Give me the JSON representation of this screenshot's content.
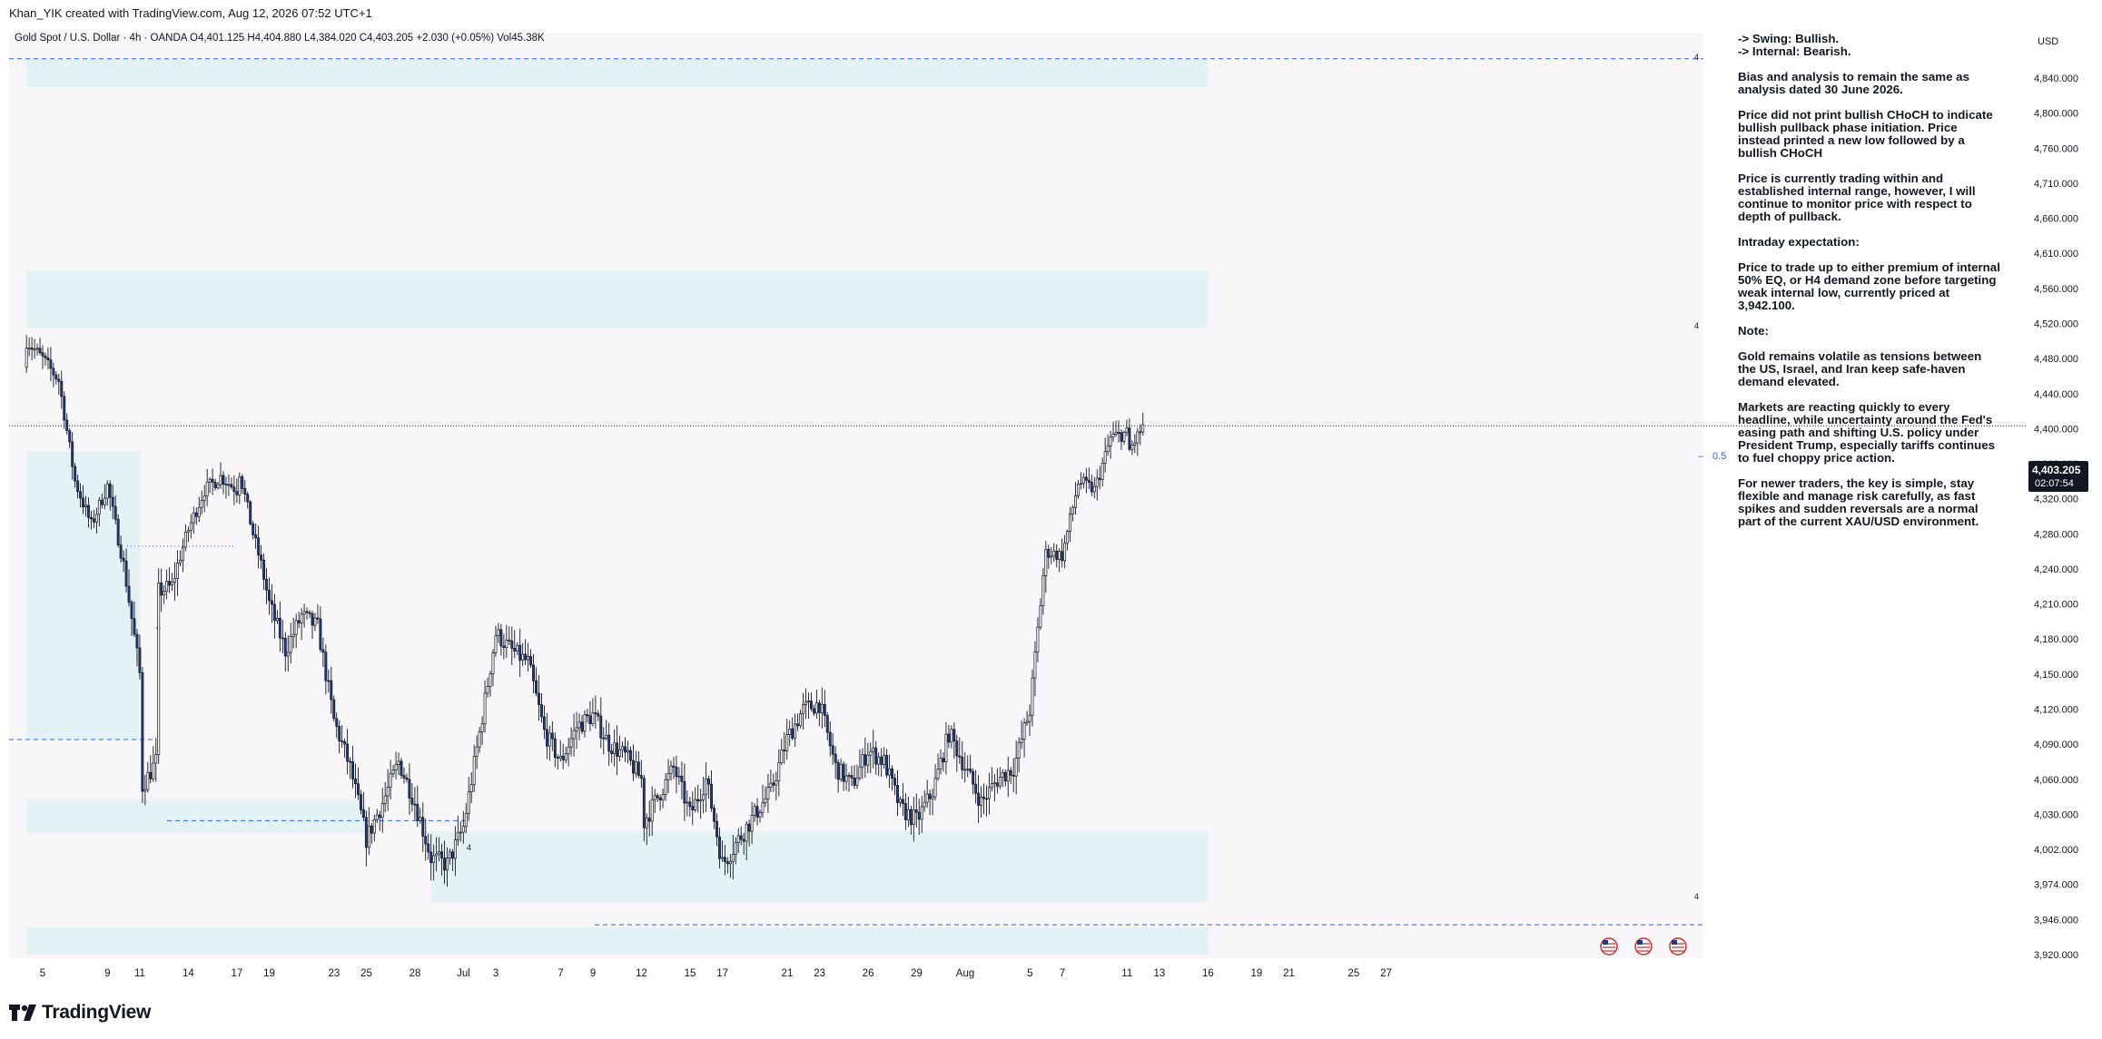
{
  "header": {
    "attribution": "Khan_YIK created with TradingView.com, Aug 12, 2026 07:52 UTC+1"
  },
  "legend_text": "Gold Spot / U.S. Dollar · 4h · OANDA  O4,401.125  H4,404.880  L4,384.020  C4,403.205  +2.030 (+0.05%)  Vol45.38K",
  "currency": "USD",
  "price_label": "4,403.205",
  "countdown": "02:07:54",
  "eq_label": "0.5",
  "zone_markers": [
    "4",
    "4",
    "4",
    "4",
    "4"
  ],
  "notes": [
    "-> Swing:  Bullish.",
    "-> Internal:  Bearish.",
    "Bias and analysis to remain the same as analysis dated 30 June 2026.",
    "Price did not print bullish CHoCH to indicate bullish pullback phase initiation. Price instead printed a new low followed by a bullish CHoCH",
    "Price is currently trading within and established internal range, however, I will continue to monitor price with respect to depth of pullback.",
    "Intraday expectation:",
    "Price to trade up to either premium of internal 50% EQ, or H4 demand zone before targeting weak internal low, currently priced at 3,942.100.",
    "Note:",
    "Gold remains volatile as tensions between the US, Israel, and Iran keep safe-haven demand elevated.",
    "Markets are reacting quickly to every headline, while uncertainty around the Fed's easing path and shifting U.S. policy under President Trump, especially tariffs continues to fuel choppy price action.",
    "For newer traders, the key is simple, stay flexible and manage risk carefully, as fast spikes and sudden reversals are a normal part of the current XAU/USD environment."
  ],
  "brand": "TradingView",
  "colors": {
    "bull_body": "#ffffff",
    "bear_body": "#1e3a8a",
    "wick": "#131722",
    "zone": "#e3f2f4",
    "dashed": "#2962ff",
    "plot_bg": "#f8f6f8",
    "price_tag": "#131722"
  },
  "chart_data": {
    "type": "candlestick",
    "symbol": "XAU/USD",
    "timeframe": "4h",
    "yticks": [
      4840,
      4800,
      4760,
      4710,
      4660,
      4610,
      4560,
      4520,
      4480,
      4440,
      4400,
      4360,
      4320,
      4280,
      4240,
      4210,
      4180,
      4150,
      4120,
      4090,
      4060,
      4030,
      4002,
      3974,
      3946,
      3920
    ],
    "ytick_labels": [
      "4,840.000",
      "4,800.000",
      "4,760.000",
      "4,710.000",
      "4,660.000",
      "4,610.000",
      "4,560.000",
      "4,520.000",
      "4,480.000",
      "4,440.000",
      "4,400.000",
      "4,360.000",
      "4,320.000",
      "4,280.000",
      "4,240.000",
      "4,210.000",
      "4,180.000",
      "4,150.000",
      "4,120.000",
      "4,090.000",
      "4,060.000",
      "4,030.000",
      "4,002.000",
      "3,974.000",
      "3,946.000",
      "3,920.000"
    ],
    "xticks": [
      {
        "label": "5",
        "date": "2026-06-05"
      },
      {
        "label": "9",
        "date": "2026-06-09"
      },
      {
        "label": "11",
        "date": "2026-06-11"
      },
      {
        "label": "14",
        "date": "2026-06-14"
      },
      {
        "label": "17",
        "date": "2026-06-17"
      },
      {
        "label": "19",
        "date": "2026-06-19"
      },
      {
        "label": "23",
        "date": "2026-06-23"
      },
      {
        "label": "25",
        "date": "2026-06-25"
      },
      {
        "label": "28",
        "date": "2026-06-28"
      },
      {
        "label": "Jul",
        "date": "2026-07-01"
      },
      {
        "label": "3",
        "date": "2026-07-03"
      },
      {
        "label": "7",
        "date": "2026-07-07"
      },
      {
        "label": "9",
        "date": "2026-07-09"
      },
      {
        "label": "12",
        "date": "2026-07-12"
      },
      {
        "label": "15",
        "date": "2026-07-15"
      },
      {
        "label": "17",
        "date": "2026-07-17"
      },
      {
        "label": "21",
        "date": "2026-07-21"
      },
      {
        "label": "23",
        "date": "2026-07-23"
      },
      {
        "label": "26",
        "date": "2026-07-26"
      },
      {
        "label": "29",
        "date": "2026-07-29"
      },
      {
        "label": "Aug",
        "date": "2026-08-01"
      },
      {
        "label": "5",
        "date": "2026-08-05"
      },
      {
        "label": "7",
        "date": "2026-08-07"
      },
      {
        "label": "11",
        "date": "2026-08-11"
      },
      {
        "label": "13",
        "date": "2026-08-13"
      },
      {
        "label": "16",
        "date": "2026-08-16"
      },
      {
        "label": "19",
        "date": "2026-08-19"
      },
      {
        "label": "21",
        "date": "2026-08-21"
      },
      {
        "label": "25",
        "date": "2026-08-25"
      },
      {
        "label": "27",
        "date": "2026-08-27"
      }
    ],
    "close_path": [
      [
        "2026-06-04",
        4470
      ],
      [
        "2026-06-04",
        4500
      ],
      [
        "2026-06-05",
        4480
      ],
      [
        "2026-06-06",
        4455
      ],
      [
        "2026-06-07",
        4340
      ],
      [
        "2026-06-08",
        4290
      ],
      [
        "2026-06-09",
        4335
      ],
      [
        "2026-06-10",
        4245
      ],
      [
        "2026-06-11",
        4150
      ],
      [
        "2026-06-11",
        4050
      ],
      [
        "2026-06-12",
        4075
      ],
      [
        "2026-06-12",
        4220
      ],
      [
        "2026-06-13",
        4225
      ],
      [
        "2026-06-14",
        4285
      ],
      [
        "2026-06-15",
        4330
      ],
      [
        "2026-06-16",
        4345
      ],
      [
        "2026-06-17",
        4330
      ],
      [
        "2026-06-17",
        4365
      ],
      [
        "2026-06-18",
        4280
      ],
      [
        "2026-06-19",
        4210
      ],
      [
        "2026-06-20",
        4170
      ],
      [
        "2026-06-21",
        4200
      ],
      [
        "2026-06-22",
        4190
      ],
      [
        "2026-06-23",
        4110
      ],
      [
        "2026-06-24",
        4070
      ],
      [
        "2026-06-25",
        4010
      ],
      [
        "2026-06-26",
        4040
      ],
      [
        "2026-06-27",
        4075
      ],
      [
        "2026-06-28",
        4040
      ],
      [
        "2026-06-29",
        3995
      ],
      [
        "2026-06-30",
        3990
      ],
      [
        "2026-07-01",
        4020
      ],
      [
        "2026-07-02",
        4100
      ],
      [
        "2026-07-03",
        4185
      ],
      [
        "2026-07-04",
        4170
      ],
      [
        "2026-07-05",
        4160
      ],
      [
        "2026-07-06",
        4100
      ],
      [
        "2026-07-07",
        4075
      ],
      [
        "2026-07-08",
        4105
      ],
      [
        "2026-07-09",
        4115
      ],
      [
        "2026-07-10",
        4090
      ],
      [
        "2026-07-11",
        4080
      ],
      [
        "2026-07-12",
        4060
      ],
      [
        "2026-07-12",
        4020
      ],
      [
        "2026-07-13",
        4045
      ],
      [
        "2026-07-14",
        4070
      ],
      [
        "2026-07-15",
        4030
      ],
      [
        "2026-07-16",
        4060
      ],
      [
        "2026-07-17",
        3990
      ],
      [
        "2026-07-18",
        4010
      ],
      [
        "2026-07-19",
        4030
      ],
      [
        "2026-07-20",
        4050
      ],
      [
        "2026-07-21",
        4095
      ],
      [
        "2026-07-22",
        4120
      ],
      [
        "2026-07-23",
        4125
      ],
      [
        "2026-07-24",
        4070
      ],
      [
        "2026-07-25",
        4055
      ],
      [
        "2026-07-26",
        4085
      ],
      [
        "2026-07-27",
        4075
      ],
      [
        "2026-07-28",
        4035
      ],
      [
        "2026-07-29",
        4025
      ],
      [
        "2026-07-30",
        4050
      ],
      [
        "2026-07-31",
        4100
      ],
      [
        "2026-08-01",
        4070
      ],
      [
        "2026-08-02",
        4040
      ],
      [
        "2026-08-03",
        4060
      ],
      [
        "2026-08-04",
        4070
      ],
      [
        "2026-08-05",
        4120
      ],
      [
        "2026-08-06",
        4260
      ],
      [
        "2026-08-07",
        4255
      ],
      [
        "2026-08-08",
        4340
      ],
      [
        "2026-08-09",
        4330
      ],
      [
        "2026-08-10",
        4390
      ],
      [
        "2026-08-11",
        4395
      ],
      [
        "2026-08-11",
        4370
      ],
      [
        "2026-08-12",
        4403
      ]
    ],
    "zones": [
      {
        "from": "2026-06-04",
        "to": "2026-08-16",
        "low": 4829,
        "high": 4862,
        "kind": "supply"
      },
      {
        "from": "2026-06-04",
        "to": "2026-08-16",
        "low": 4515,
        "high": 4585,
        "kind": "supply"
      },
      {
        "from": "2026-06-04",
        "to": "2026-06-11",
        "low": 4094,
        "high": 4374,
        "kind": "demand"
      },
      {
        "from": "2026-06-04",
        "to": "2026-06-25",
        "low": 4015,
        "high": 4043,
        "kind": "demand"
      },
      {
        "from": "2026-06-29",
        "to": "2026-08-16",
        "low": 3960,
        "high": 4016,
        "kind": "demand"
      },
      {
        "from": "2026-06-04",
        "to": "2026-08-16",
        "low": 3920,
        "high": 3940,
        "kind": "demand"
      }
    ],
    "levels": [
      {
        "name": "current_price",
        "value": 4403.205
      },
      {
        "name": "equilibrium_0.5",
        "value": 4402
      },
      {
        "name": "weak_internal_low",
        "value": 3942.1
      }
    ],
    "ylim": [
      3910,
      4870
    ],
    "xlim": [
      "2026-06-04",
      "2026-08-29"
    ]
  }
}
